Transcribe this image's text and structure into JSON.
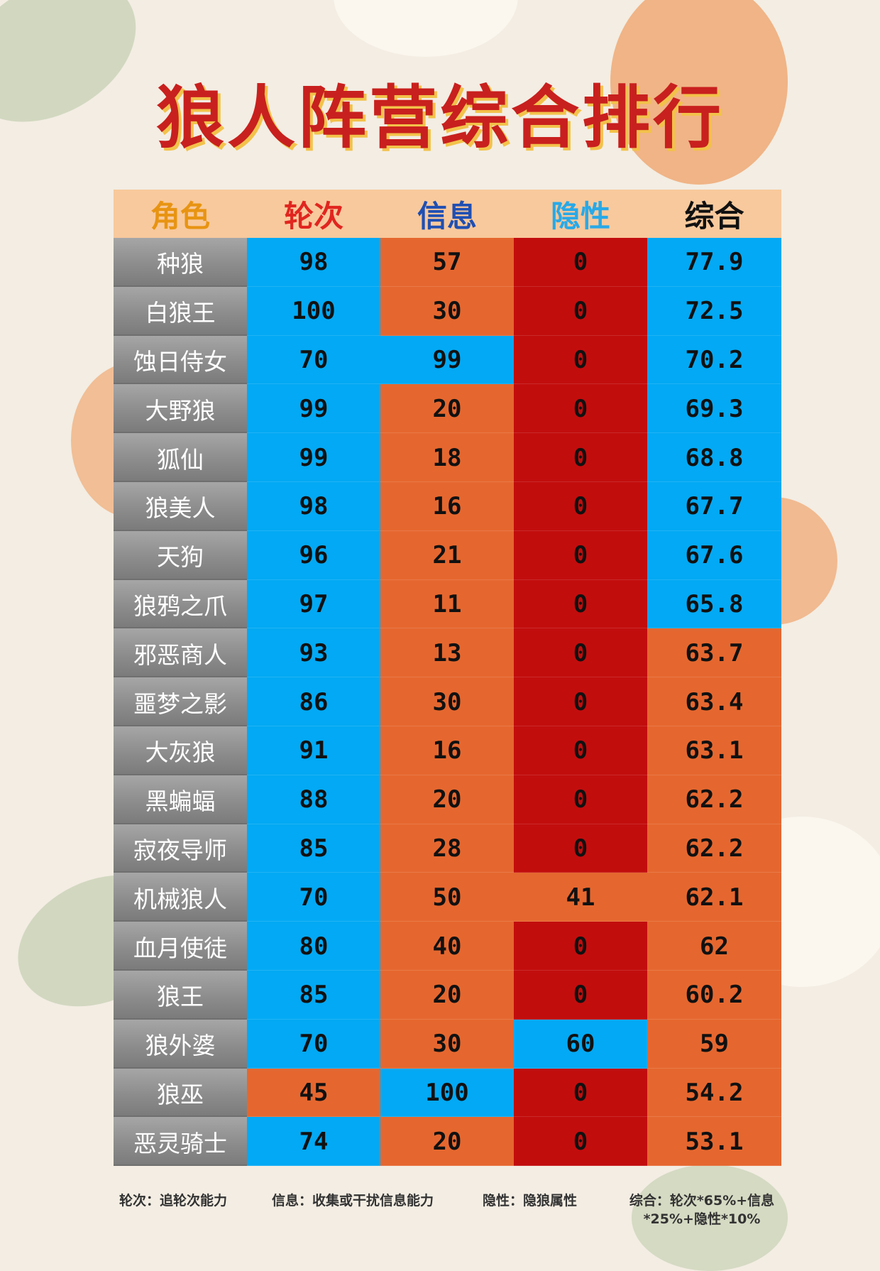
{
  "title": "狼人阵营综合排行",
  "headers": [
    {
      "label": "角色",
      "color": "#e89412"
    },
    {
      "label": "轮次",
      "color": "#e1261f"
    },
    {
      "label": "信息",
      "color": "#1f4fb3"
    },
    {
      "label": "隐性",
      "color": "#28a9e8"
    },
    {
      "label": "综合",
      "color": "#111111"
    }
  ],
  "rows": [
    {
      "name": "种狼",
      "round": "98",
      "info": "57",
      "hidden": "0",
      "total": "77.9",
      "colors": [
        "blue",
        "orange",
        "red",
        "blue"
      ]
    },
    {
      "name": "白狼王",
      "round": "100",
      "info": "30",
      "hidden": "0",
      "total": "72.5",
      "colors": [
        "blue",
        "orange",
        "red",
        "blue"
      ]
    },
    {
      "name": "蚀日侍女",
      "round": "70",
      "info": "99",
      "hidden": "0",
      "total": "70.2",
      "colors": [
        "blue",
        "blue",
        "red",
        "blue"
      ]
    },
    {
      "name": "大野狼",
      "round": "99",
      "info": "20",
      "hidden": "0",
      "total": "69.3",
      "colors": [
        "blue",
        "orange",
        "red",
        "blue"
      ]
    },
    {
      "name": "狐仙",
      "round": "99",
      "info": "18",
      "hidden": "0",
      "total": "68.8",
      "colors": [
        "blue",
        "orange",
        "red",
        "blue"
      ]
    },
    {
      "name": "狼美人",
      "round": "98",
      "info": "16",
      "hidden": "0",
      "total": "67.7",
      "colors": [
        "blue",
        "orange",
        "red",
        "blue"
      ]
    },
    {
      "name": "天狗",
      "round": "96",
      "info": "21",
      "hidden": "0",
      "total": "67.6",
      "colors": [
        "blue",
        "orange",
        "red",
        "blue"
      ]
    },
    {
      "name": "狼鸦之爪",
      "round": "97",
      "info": "11",
      "hidden": "0",
      "total": "65.8",
      "colors": [
        "blue",
        "orange",
        "red",
        "blue"
      ]
    },
    {
      "name": "邪恶商人",
      "round": "93",
      "info": "13",
      "hidden": "0",
      "total": "63.7",
      "colors": [
        "blue",
        "orange",
        "red",
        "orange"
      ]
    },
    {
      "name": "噩梦之影",
      "round": "86",
      "info": "30",
      "hidden": "0",
      "total": "63.4",
      "colors": [
        "blue",
        "orange",
        "red",
        "orange"
      ]
    },
    {
      "name": "大灰狼",
      "round": "91",
      "info": "16",
      "hidden": "0",
      "total": "63.1",
      "colors": [
        "blue",
        "orange",
        "red",
        "orange"
      ]
    },
    {
      "name": "黑蝙蝠",
      "round": "88",
      "info": "20",
      "hidden": "0",
      "total": "62.2",
      "colors": [
        "blue",
        "orange",
        "red",
        "orange"
      ]
    },
    {
      "name": "寂夜导师",
      "round": "85",
      "info": "28",
      "hidden": "0",
      "total": "62.2",
      "colors": [
        "blue",
        "orange",
        "red",
        "orange"
      ]
    },
    {
      "name": "机械狼人",
      "round": "70",
      "info": "50",
      "hidden": "41",
      "total": "62.1",
      "colors": [
        "blue",
        "orange",
        "orange",
        "orange"
      ]
    },
    {
      "name": "血月使徒",
      "round": "80",
      "info": "40",
      "hidden": "0",
      "total": "62",
      "colors": [
        "blue",
        "orange",
        "red",
        "orange"
      ]
    },
    {
      "name": "狼王",
      "round": "85",
      "info": "20",
      "hidden": "0",
      "total": "60.2",
      "colors": [
        "blue",
        "orange",
        "red",
        "orange"
      ]
    },
    {
      "name": "狼外婆",
      "round": "70",
      "info": "30",
      "hidden": "60",
      "total": "59",
      "colors": [
        "blue",
        "orange",
        "blue",
        "orange"
      ]
    },
    {
      "name": "狼巫",
      "round": "45",
      "info": "100",
      "hidden": "0",
      "total": "54.2",
      "colors": [
        "orange",
        "blue",
        "red",
        "orange"
      ]
    },
    {
      "name": "恶灵骑士",
      "round": "74",
      "info": "20",
      "hidden": "0",
      "total": "53.1",
      "colors": [
        "blue",
        "orange",
        "red",
        "orange"
      ]
    }
  ],
  "footnotes": [
    "轮次：追轮次能力",
    "信息：收集或干扰信息能力",
    "隐性：隐狼属性",
    "综合：轮次*65%+信息*25%+隐性*10%"
  ]
}
